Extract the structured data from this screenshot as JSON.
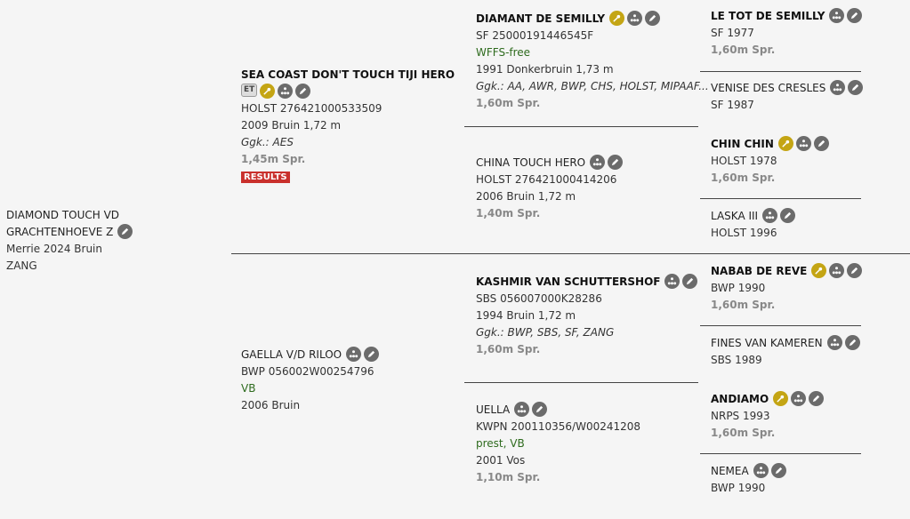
{
  "colors": {
    "icon_gold": "#c4a514",
    "icon_gray": "#6b6b6b",
    "results_red": "#c9302c",
    "green_text": "#2e6b1e"
  },
  "subject": {
    "name_line1": "DIAMOND TOUCH VD",
    "name_line2": "GRACHTENHOEVE Z",
    "icons": [
      "pencil-icon"
    ],
    "lines": [
      "Merrie 2024 Bruin",
      "ZANG"
    ]
  },
  "horses": [
    {
      "key": "sire",
      "name": "SEA COAST DON'T TOUCH TIJI HERO",
      "bold": true,
      "icons_on_own_line": true,
      "badge": "ET",
      "icons": [
        "key-icon",
        "pedigree-tree-icon",
        "pencil-icon"
      ],
      "lines": [
        {
          "t": "HOLST 276421000533509",
          "s": ""
        },
        {
          "t": "2009 Bruin 1,72 m",
          "s": ""
        },
        {
          "t": "Ggk.: AES",
          "s": "ital"
        },
        {
          "t": "1,45m Spr.",
          "s": "perf"
        }
      ],
      "button": "RESULTS"
    },
    {
      "key": "dam",
      "name": "GAELLA V/D RILOO",
      "bold": false,
      "icons": [
        "pedigree-tree-icon",
        "pencil-icon"
      ],
      "lines": [
        {
          "t": "BWP 056002W00254796",
          "s": ""
        },
        {
          "t": "VB",
          "s": "green"
        },
        {
          "t": "2006 Bruin",
          "s": ""
        }
      ]
    },
    {
      "key": "ss",
      "name": "DIAMANT DE SEMILLY",
      "bold": true,
      "icons": [
        "key-icon",
        "pedigree-tree-icon",
        "pencil-icon"
      ],
      "lines": [
        {
          "t": "SF 25000191446545F",
          "s": ""
        },
        {
          "t": "WFFS-free",
          "s": "green"
        },
        {
          "t": "1991 Donkerbruin 1,73 m",
          "s": ""
        },
        {
          "t": "Ggk.: AA, AWR, BWP, CHS, HOLST, MIPAAF...",
          "s": "ital"
        },
        {
          "t": "1,60m Spr.",
          "s": "perf"
        }
      ]
    },
    {
      "key": "sd",
      "name": "CHINA TOUCH HERO",
      "bold": false,
      "icons": [
        "pedigree-tree-icon",
        "pencil-icon"
      ],
      "lines": [
        {
          "t": "HOLST 276421000414206",
          "s": ""
        },
        {
          "t": "2006 Bruin 1,72 m",
          "s": ""
        },
        {
          "t": "1,40m Spr.",
          "s": "perf"
        }
      ]
    },
    {
      "key": "ds",
      "name": "KASHMIR VAN SCHUTTERSHOF",
      "bold": true,
      "icons": [
        "pedigree-tree-icon",
        "pencil-icon"
      ],
      "lines": [
        {
          "t": "SBS 056007000K28286",
          "s": ""
        },
        {
          "t": "1994 Bruin 1,72 m",
          "s": ""
        },
        {
          "t": "Ggk.: BWP, SBS, SF, ZANG",
          "s": "ital"
        },
        {
          "t": "1,60m Spr.",
          "s": "perf"
        }
      ]
    },
    {
      "key": "dd",
      "name": "UELLA",
      "bold": false,
      "icons": [
        "pedigree-tree-icon",
        "pencil-icon"
      ],
      "lines": [
        {
          "t": "KWPN 200110356/W00241208",
          "s": ""
        },
        {
          "t": "prest, VB",
          "s": "green"
        },
        {
          "t": "2001 Vos",
          "s": ""
        },
        {
          "t": "1,10m Spr.",
          "s": "perf"
        }
      ]
    },
    {
      "key": "sss",
      "name": "LE TOT DE SEMILLY",
      "bold": true,
      "icons": [
        "pedigree-tree-icon",
        "pencil-icon"
      ],
      "lines": [
        {
          "t": "SF 1977",
          "s": ""
        },
        {
          "t": "1,60m Spr.",
          "s": "perf"
        }
      ]
    },
    {
      "key": "ssd",
      "name": "VENISE DES CRESLES",
      "bold": false,
      "icons": [
        "pedigree-tree-icon",
        "pencil-icon"
      ],
      "lines": [
        {
          "t": "SF 1987",
          "s": ""
        }
      ]
    },
    {
      "key": "sds",
      "name": "CHIN CHIN",
      "bold": true,
      "icons": [
        "key-icon",
        "pedigree-tree-icon",
        "pencil-icon"
      ],
      "lines": [
        {
          "t": "HOLST 1978",
          "s": ""
        },
        {
          "t": "1,60m Spr.",
          "s": "perf"
        }
      ]
    },
    {
      "key": "sdd",
      "name": "LASKA III",
      "bold": false,
      "icons": [
        "pedigree-tree-icon",
        "pencil-icon"
      ],
      "lines": [
        {
          "t": "HOLST 1996",
          "s": ""
        }
      ]
    },
    {
      "key": "dss",
      "name": "NABAB DE REVE",
      "bold": true,
      "icons": [
        "key-icon",
        "pedigree-tree-icon",
        "pencil-icon"
      ],
      "lines": [
        {
          "t": "BWP 1990",
          "s": ""
        },
        {
          "t": "1,60m Spr.",
          "s": "perf"
        }
      ]
    },
    {
      "key": "dsd",
      "name": "FINES VAN KAMEREN",
      "bold": false,
      "icons": [
        "pedigree-tree-icon",
        "pencil-icon"
      ],
      "lines": [
        {
          "t": "SBS 1989",
          "s": ""
        }
      ]
    },
    {
      "key": "dds",
      "name": "ANDIAMO",
      "bold": true,
      "icons": [
        "key-icon",
        "pedigree-tree-icon",
        "pencil-icon"
      ],
      "lines": [
        {
          "t": "NRPS 1993",
          "s": ""
        },
        {
          "t": "1,60m Spr.",
          "s": "perf"
        }
      ]
    },
    {
      "key": "ddd",
      "name": "NEMEA",
      "bold": false,
      "icons": [
        "pedigree-tree-icon",
        "pencil-icon"
      ],
      "lines": [
        {
          "t": "BWP 1990",
          "s": ""
        }
      ]
    }
  ]
}
